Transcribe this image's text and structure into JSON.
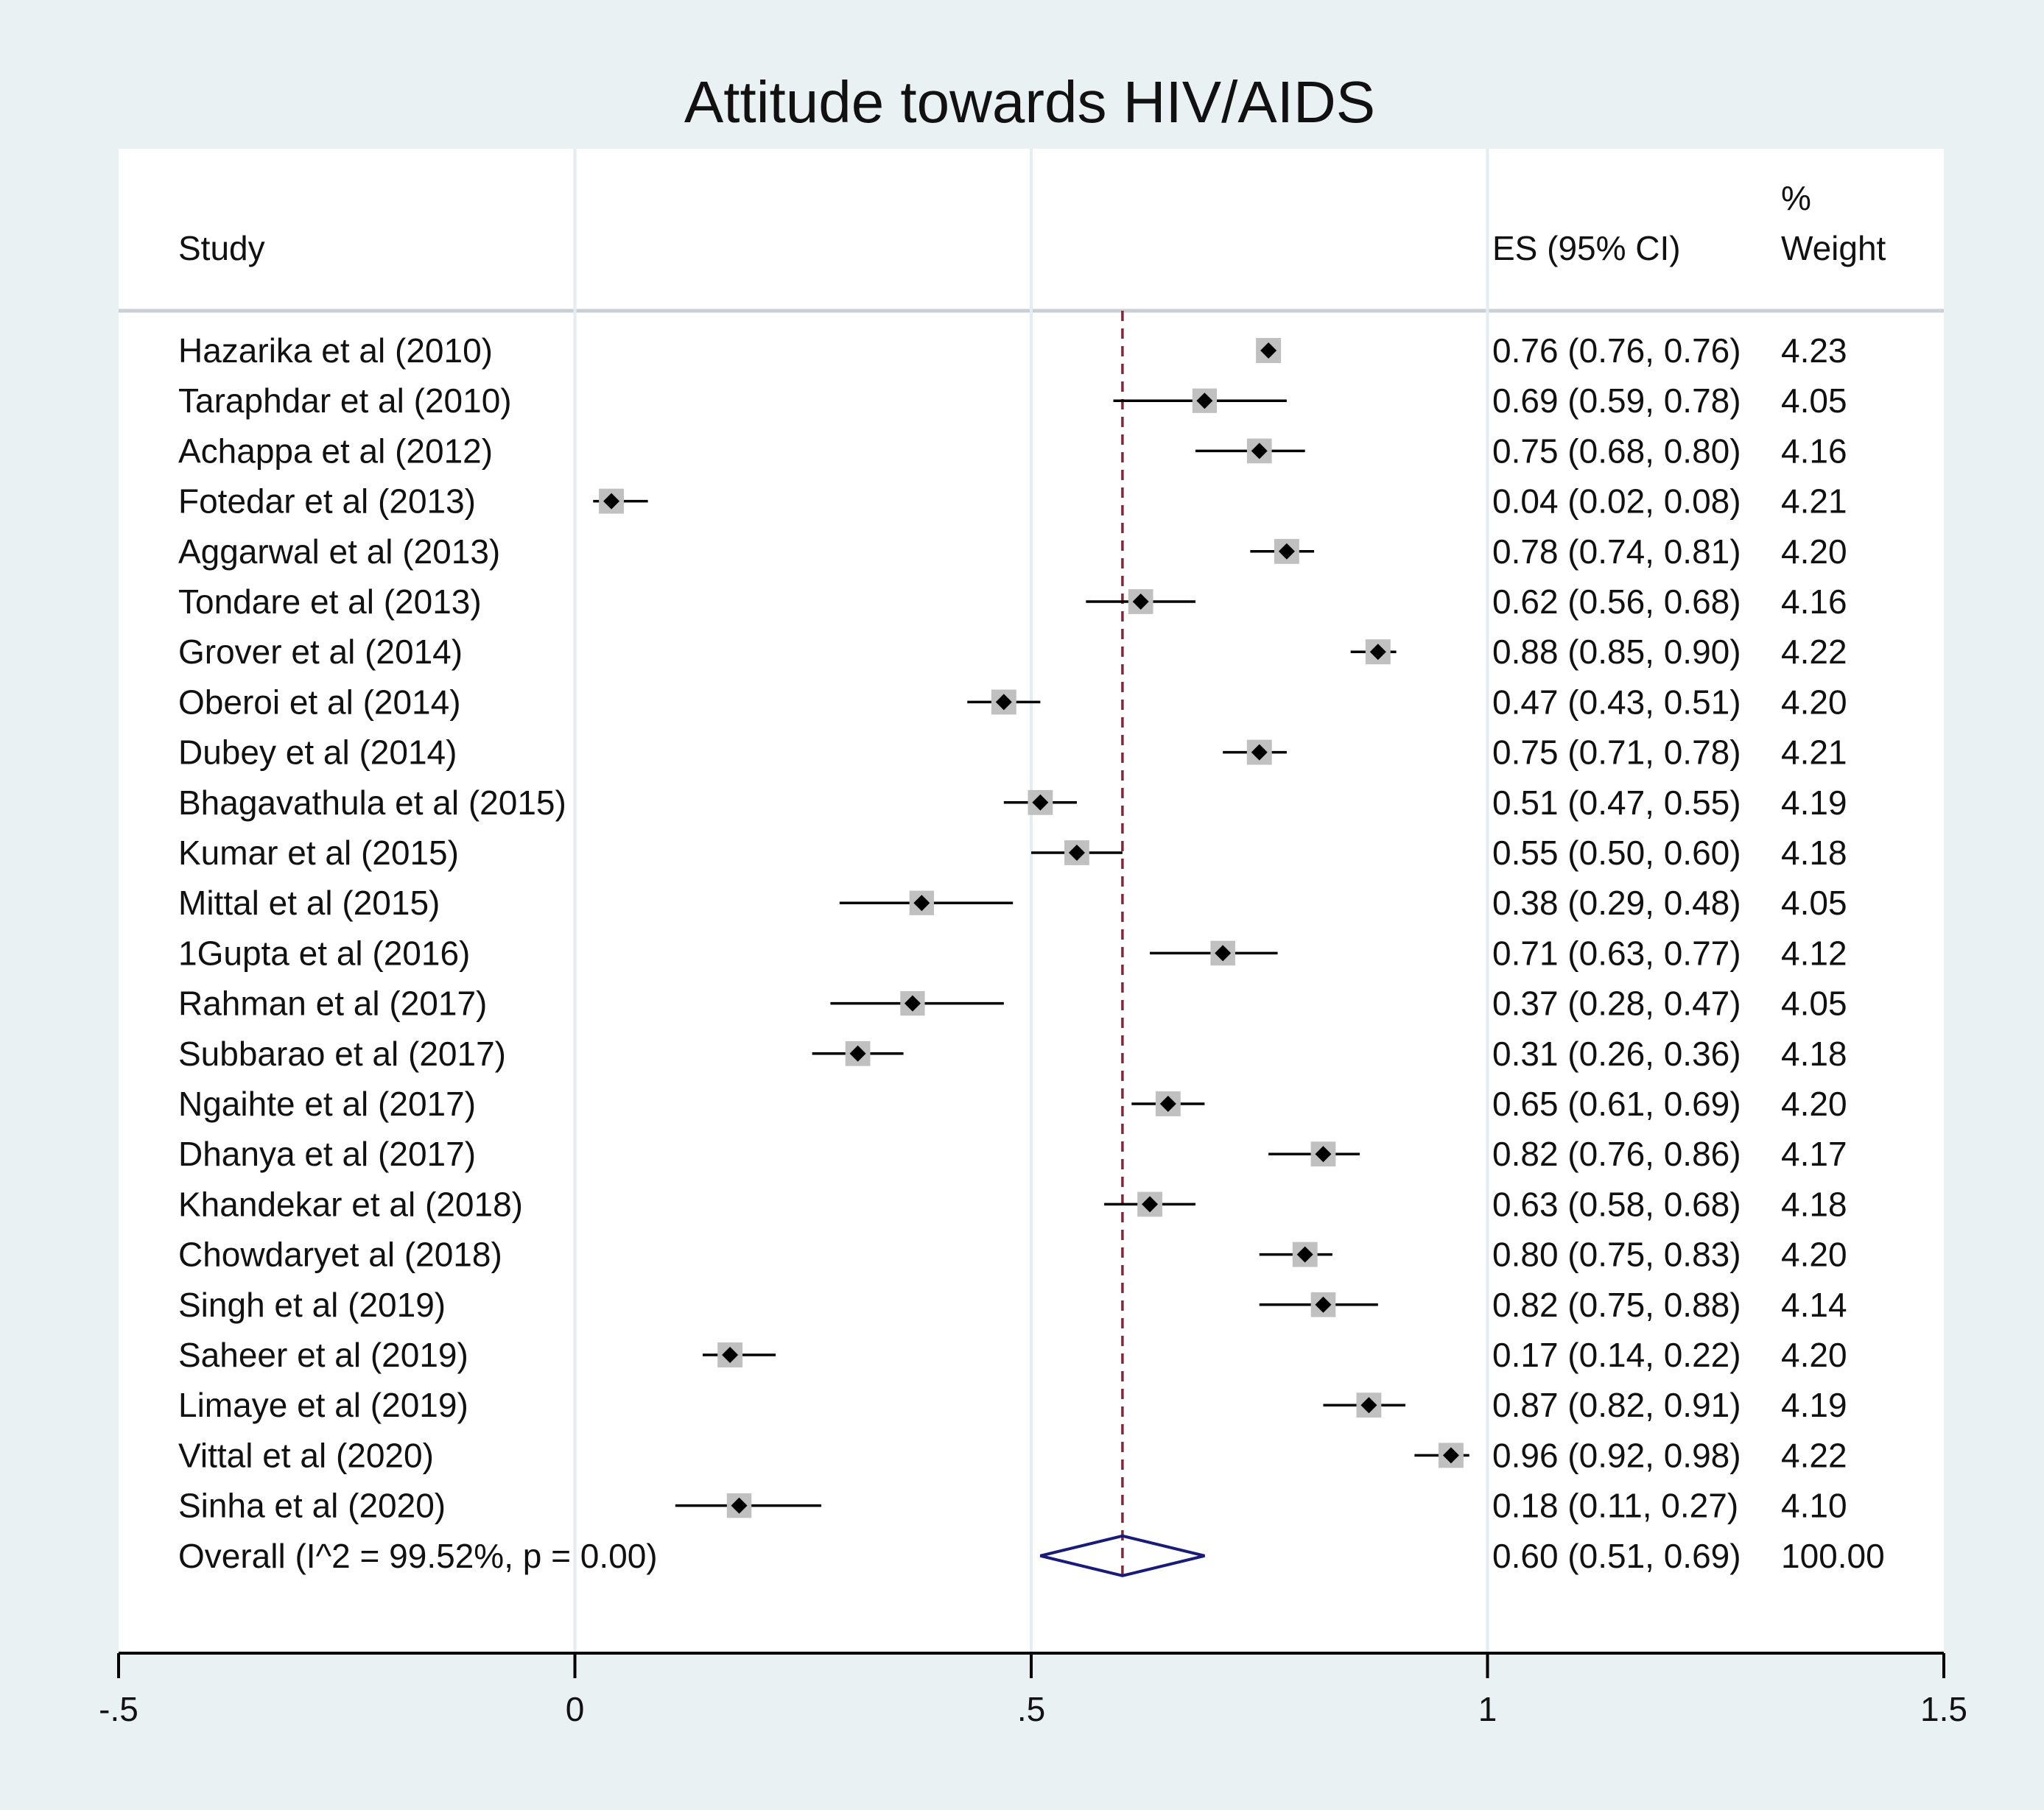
{
  "chart_data": {
    "type": "forest",
    "title": "Attitude towards HIV/AIDS",
    "columns": {
      "study": "Study",
      "es": "ES (95% CI)",
      "weight_line1": "%",
      "weight_line2": "Weight"
    },
    "xlim": [
      -0.5,
      1.5
    ],
    "xticks": [
      {
        "value": -0.5,
        "label": "-.5"
      },
      {
        "value": 0,
        "label": "0"
      },
      {
        "value": 0.5,
        "label": ".5"
      },
      {
        "value": 1,
        "label": "1"
      },
      {
        "value": 1.5,
        "label": "1.5"
      }
    ],
    "reference_line": 0.6,
    "null_line": 0,
    "studies": [
      {
        "name": "Hazarika et al (2010)",
        "es": 0.76,
        "lo": 0.76,
        "hi": 0.76,
        "es_text": "0.76 (0.76, 0.76)",
        "weight": 4.23,
        "weight_text": "4.23"
      },
      {
        "name": "Taraphdar et al (2010)",
        "es": 0.69,
        "lo": 0.59,
        "hi": 0.78,
        "es_text": "0.69 (0.59, 0.78)",
        "weight": 4.05,
        "weight_text": "4.05"
      },
      {
        "name": "Achappa et al (2012)",
        "es": 0.75,
        "lo": 0.68,
        "hi": 0.8,
        "es_text": "0.75 (0.68, 0.80)",
        "weight": 4.16,
        "weight_text": "4.16"
      },
      {
        "name": "Fotedar et al (2013)",
        "es": 0.04,
        "lo": 0.02,
        "hi": 0.08,
        "es_text": "0.04 (0.02, 0.08)",
        "weight": 4.21,
        "weight_text": "4.21"
      },
      {
        "name": "Aggarwal et al (2013)",
        "es": 0.78,
        "lo": 0.74,
        "hi": 0.81,
        "es_text": "0.78 (0.74, 0.81)",
        "weight": 4.2,
        "weight_text": "4.20"
      },
      {
        "name": "Tondare et al (2013)",
        "es": 0.62,
        "lo": 0.56,
        "hi": 0.68,
        "es_text": "0.62 (0.56, 0.68)",
        "weight": 4.16,
        "weight_text": "4.16"
      },
      {
        "name": "Grover et al (2014)",
        "es": 0.88,
        "lo": 0.85,
        "hi": 0.9,
        "es_text": "0.88 (0.85, 0.90)",
        "weight": 4.22,
        "weight_text": "4.22"
      },
      {
        "name": "Oberoi et al (2014)",
        "es": 0.47,
        "lo": 0.43,
        "hi": 0.51,
        "es_text": "0.47 (0.43, 0.51)",
        "weight": 4.2,
        "weight_text": "4.20"
      },
      {
        "name": "Dubey et al (2014)",
        "es": 0.75,
        "lo": 0.71,
        "hi": 0.78,
        "es_text": "0.75 (0.71, 0.78)",
        "weight": 4.21,
        "weight_text": "4.21"
      },
      {
        "name": "Bhagavathula et al (2015)",
        "es": 0.51,
        "lo": 0.47,
        "hi": 0.55,
        "es_text": "0.51 (0.47, 0.55)",
        "weight": 4.19,
        "weight_text": "4.19"
      },
      {
        "name": "Kumar et al (2015)",
        "es": 0.55,
        "lo": 0.5,
        "hi": 0.6,
        "es_text": "0.55 (0.50, 0.60)",
        "weight": 4.18,
        "weight_text": "4.18"
      },
      {
        "name": "Mittal et al (2015)",
        "es": 0.38,
        "lo": 0.29,
        "hi": 0.48,
        "es_text": "0.38 (0.29, 0.48)",
        "weight": 4.05,
        "weight_text": "4.05"
      },
      {
        "name": "1Gupta et al (2016)",
        "es": 0.71,
        "lo": 0.63,
        "hi": 0.77,
        "es_text": "0.71 (0.63, 0.77)",
        "weight": 4.12,
        "weight_text": "4.12"
      },
      {
        "name": "Rahman et al (2017)",
        "es": 0.37,
        "lo": 0.28,
        "hi": 0.47,
        "es_text": "0.37 (0.28, 0.47)",
        "weight": 4.05,
        "weight_text": "4.05"
      },
      {
        "name": "Subbarao et al (2017)",
        "es": 0.31,
        "lo": 0.26,
        "hi": 0.36,
        "es_text": "0.31 (0.26, 0.36)",
        "weight": 4.18,
        "weight_text": "4.18"
      },
      {
        "name": "Ngaihte et al (2017)",
        "es": 0.65,
        "lo": 0.61,
        "hi": 0.69,
        "es_text": "0.65 (0.61, 0.69)",
        "weight": 4.2,
        "weight_text": "4.20"
      },
      {
        "name": "Dhanya et al (2017)",
        "es": 0.82,
        "lo": 0.76,
        "hi": 0.86,
        "es_text": "0.82 (0.76, 0.86)",
        "weight": 4.17,
        "weight_text": "4.17"
      },
      {
        "name": "Khandekar et al  (2018)",
        "es": 0.63,
        "lo": 0.58,
        "hi": 0.68,
        "es_text": "0.63 (0.58, 0.68)",
        "weight": 4.18,
        "weight_text": "4.18"
      },
      {
        "name": "Chowdaryet al (2018)",
        "es": 0.8,
        "lo": 0.75,
        "hi": 0.83,
        "es_text": "0.80 (0.75, 0.83)",
        "weight": 4.2,
        "weight_text": "4.20"
      },
      {
        "name": "Singh et al (2019)",
        "es": 0.82,
        "lo": 0.75,
        "hi": 0.88,
        "es_text": "0.82 (0.75, 0.88)",
        "weight": 4.14,
        "weight_text": "4.14"
      },
      {
        "name": "Saheer et al (2019)",
        "es": 0.17,
        "lo": 0.14,
        "hi": 0.22,
        "es_text": "0.17 (0.14, 0.22)",
        "weight": 4.2,
        "weight_text": "4.20"
      },
      {
        "name": "Limaye et al (2019)",
        "es": 0.87,
        "lo": 0.82,
        "hi": 0.91,
        "es_text": "0.87 (0.82, 0.91)",
        "weight": 4.19,
        "weight_text": "4.19"
      },
      {
        "name": "Vittal et al (2020)",
        "es": 0.96,
        "lo": 0.92,
        "hi": 0.98,
        "es_text": "0.96 (0.92, 0.98)",
        "weight": 4.22,
        "weight_text": "4.22"
      },
      {
        "name": "Sinha et al (2020)",
        "es": 0.18,
        "lo": 0.11,
        "hi": 0.27,
        "es_text": "0.18 (0.11, 0.27)",
        "weight": 4.1,
        "weight_text": "4.10"
      }
    ],
    "overall": {
      "label": "Overall  (I^2 = 99.52%, p = 0.00)",
      "es": 0.6,
      "lo": 0.51,
      "hi": 0.69,
      "es_text": "0.60 (0.51, 0.69)",
      "weight_text": "100.00"
    },
    "colors": {
      "background": "#eaf1f3",
      "panel": "#ffffff",
      "reference_line": "#7a2a3a",
      "overall_diamond": "#1a1a7a",
      "weight_box": "#c0c0c0",
      "gridline": "#e3ecf1"
    }
  }
}
